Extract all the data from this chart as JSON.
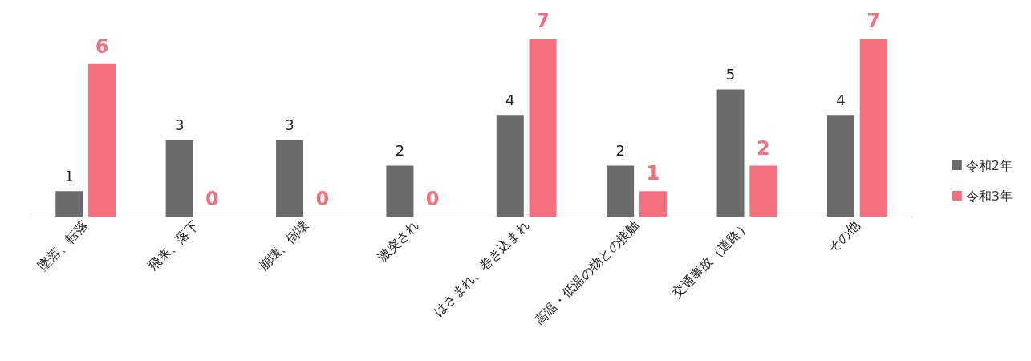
{
  "chart_data": {
    "type": "bar",
    "categories": [
      "墜落、転落",
      "飛来、落下",
      "崩壊、倒壊",
      "激突され",
      "はさまれ、巻き込まれ",
      "高温・低温の物との接触",
      "交通事故（道路）",
      "その他"
    ],
    "series": [
      {
        "name": "令和2年",
        "color": "#6b6b6b",
        "values": [
          1,
          3,
          3,
          2,
          4,
          2,
          5,
          4
        ]
      },
      {
        "name": "令和3年",
        "color": "#f4707e",
        "values": [
          6,
          0,
          0,
          0,
          7,
          1,
          2,
          7
        ]
      }
    ],
    "data_labels": true,
    "legend": "right",
    "grid": false
  }
}
